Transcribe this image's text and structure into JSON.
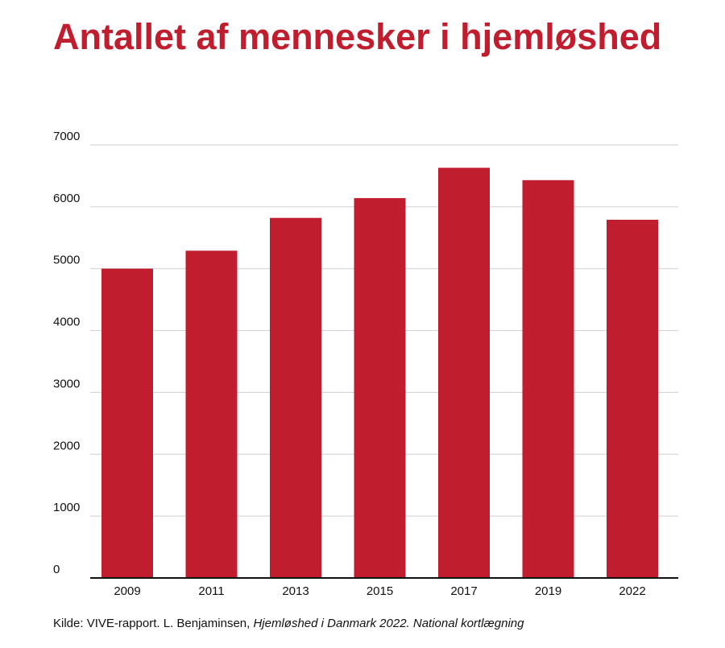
{
  "chart_data": {
    "type": "bar",
    "title": "Antallet af mennesker i hjemløshed",
    "categories": [
      "2009",
      "2011",
      "2013",
      "2015",
      "2017",
      "2019",
      "2022"
    ],
    "values": [
      5000,
      5290,
      5820,
      6140,
      6630,
      6430,
      5790
    ],
    "xlabel": "",
    "ylabel": "",
    "ylim": [
      0,
      7000
    ],
    "yticks": [
      0,
      1000,
      2000,
      3000,
      4000,
      5000,
      6000,
      7000
    ],
    "grid": true,
    "legend": "none",
    "bar_color": "#c01e2e"
  },
  "source": {
    "prefix": "Kilde: VIVE-rapport. L. Benjaminsen, ",
    "italic": "Hjemløshed i Danmark 2022. National kortlægning"
  }
}
